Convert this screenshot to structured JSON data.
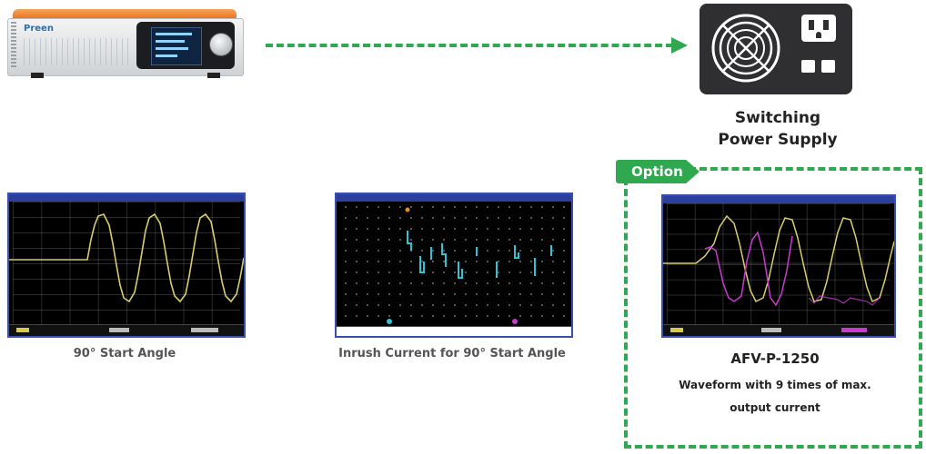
{
  "device": {
    "brand": "Preen",
    "model": "AFV-P-1250"
  },
  "power_supply": {
    "label_line1": "Switching",
    "label_line2": "Power Supply"
  },
  "scopes": [
    {
      "caption": "90° Start Angle"
    },
    {
      "caption": "Inrush Current for 90° Start Angle"
    }
  ],
  "option": {
    "tab_label": "Option",
    "model": "AFV-P-1250",
    "description_line1": "Waveform with 9 times of max.",
    "description_line2": "output current"
  },
  "colors": {
    "accent_green": "#2fa84f",
    "waveform_yellow": "#d9cf6a",
    "current_cyan": "#2ec4d6",
    "overlay_magenta": "#c93ad0"
  }
}
